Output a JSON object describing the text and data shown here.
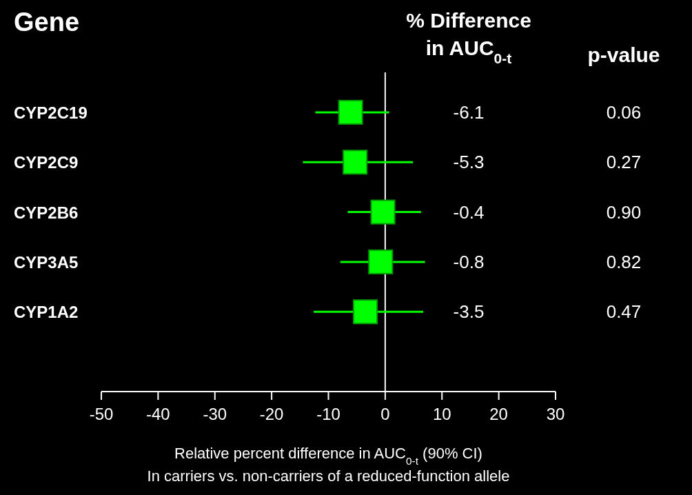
{
  "chart_data": {
    "type": "scatter",
    "orientation": "horizontal",
    "ylabel": "Gene",
    "xlabel": "Relative percent difference in AUC$_{0-t}$ (90% CI)\nIn carriers vs. non-carriers of a reduced-function allele",
    "categories": [
      "CYP2C19",
      "CYP2C9",
      "CYP2B6",
      "CYP3A5",
      "CYP1A2"
    ],
    "values": [
      -6.1,
      -5.3,
      -0.4,
      -0.8,
      -3.5
    ],
    "errors": [
      [
        -12.3,
        0.7
      ],
      [
        -14.5,
        4.9
      ],
      [
        -6.6,
        6.3
      ],
      [
        -7.9,
        7.0
      ],
      [
        -12.6,
        6.7
      ]
    ],
    "color": "#00ff00",
    "marker": "square",
    "xlim": [
      -50,
      30
    ],
    "xticks": [
      -50,
      -40,
      -30,
      -20,
      -10,
      0,
      10,
      20,
      30
    ],
    "ref_lines": [
      {
        "axis": "x",
        "value": 0,
        "color": "#ffffff"
      }
    ],
    "grid": false,
    "legend": false,
    "annotations": [
      "% Difference\nin AUC$_{0-t}$",
      "p-value",
      "-6.1",
      "-5.3",
      "-0.4",
      "-0.8",
      "-3.5",
      "0.06",
      "0.27",
      "0.90",
      "0.82",
      "0.47"
    ]
  }
}
